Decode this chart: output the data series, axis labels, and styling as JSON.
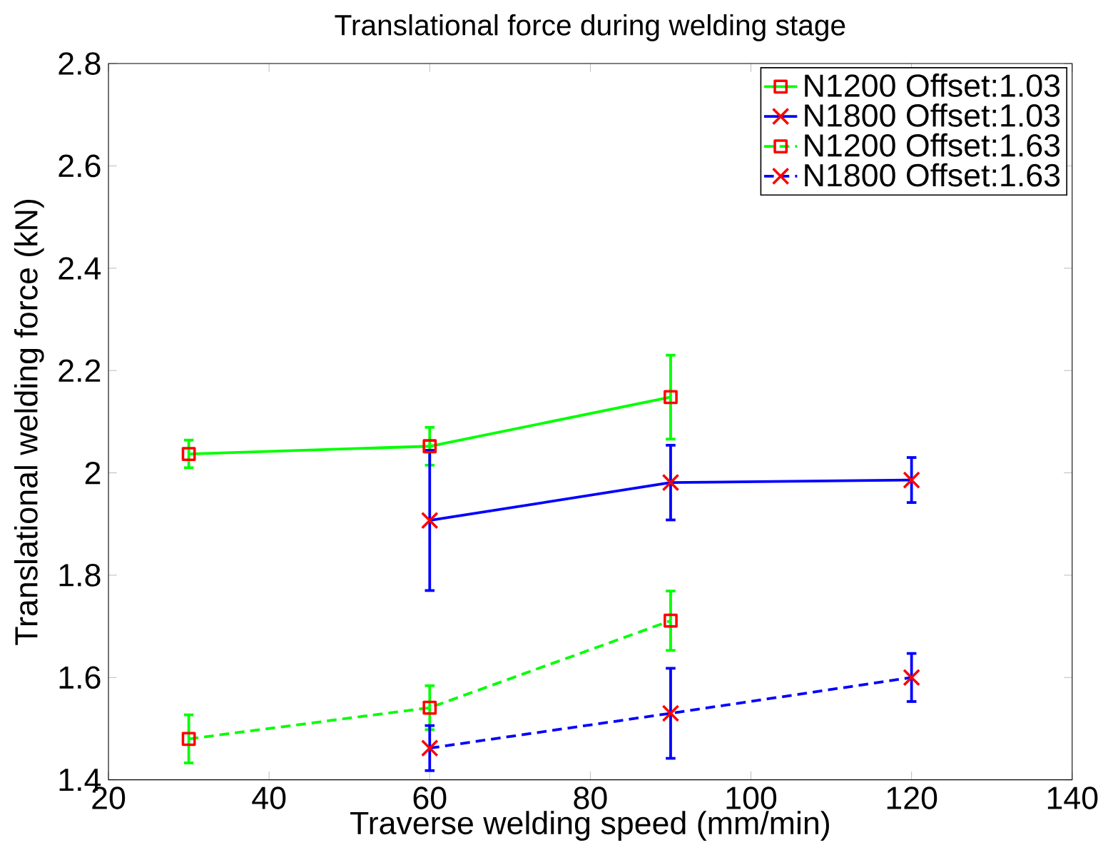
{
  "chart_data": {
    "type": "line",
    "title": "Translational force during welding stage",
    "xlabel": "Traverse welding speed (mm/min)",
    "ylabel": "Translational welding force (kN)",
    "xlim": [
      20,
      140
    ],
    "xticks": [
      20,
      40,
      60,
      80,
      100,
      120,
      140
    ],
    "ylim": [
      1.4,
      2.8
    ],
    "yticks": [
      1.4,
      1.6,
      1.8,
      2,
      2.2,
      2.4,
      2.6,
      2.8
    ],
    "legend": "top right",
    "grid": false,
    "series": [
      {
        "name": "N1200 Offset:1.03",
        "color": "#00ff00",
        "marker": "square",
        "line_style": "solid",
        "x": [
          30,
          60,
          90
        ],
        "values": [
          2.037,
          2.052,
          2.148
        ],
        "errors": [
          0.027,
          0.037,
          0.082
        ]
      },
      {
        "name": "N1800 Offset:1.03",
        "color": "#0000ff",
        "marker": "cross",
        "line_style": "solid",
        "x": [
          60,
          90,
          120
        ],
        "values": [
          1.907,
          1.981,
          1.986
        ],
        "errors": [
          0.137,
          0.073,
          0.044
        ]
      },
      {
        "name": "N1200 Offset:1.63",
        "color": "#00ff00",
        "marker": "square",
        "line_style": "dashed",
        "x": [
          30,
          60,
          90
        ],
        "values": [
          1.48,
          1.541,
          1.711
        ],
        "errors": [
          0.047,
          0.043,
          0.058
        ]
      },
      {
        "name": "N1800 Offset:1.63",
        "color": "#0000ff",
        "marker": "cross",
        "line_style": "dashed",
        "x": [
          60,
          90,
          120
        ],
        "values": [
          1.462,
          1.53,
          1.6
        ],
        "errors": [
          0.044,
          0.088,
          0.047
        ]
      }
    ]
  }
}
